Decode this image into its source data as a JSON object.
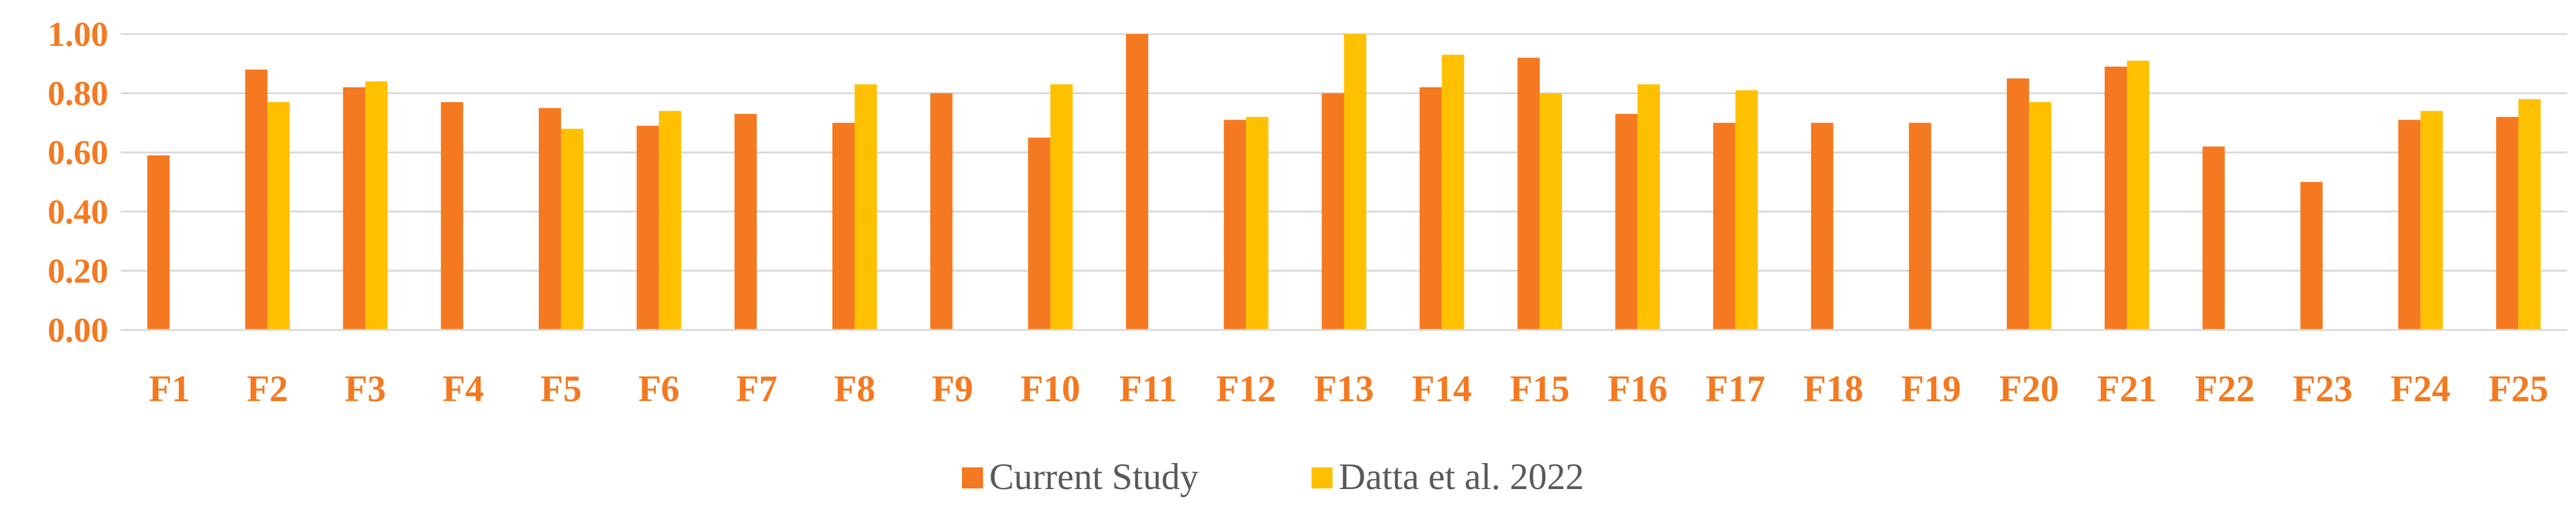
{
  "chart_data": {
    "type": "bar",
    "title": "",
    "xlabel": "",
    "ylabel": "",
    "ylim": [
      0,
      1
    ],
    "yticks": [
      "0.00",
      "0.20",
      "0.40",
      "0.60",
      "0.80",
      "1.00"
    ],
    "grid": true,
    "legend_position": "bottom",
    "tick_color": "#f47920",
    "categories": [
      "F1",
      "F2",
      "F3",
      "F4",
      "F5",
      "F6",
      "F7",
      "F8",
      "F9",
      "F10",
      "F11",
      "F12",
      "F13",
      "F14",
      "F15",
      "F16",
      "F17",
      "F18",
      "F19",
      "F20",
      "F21",
      "F22",
      "F23",
      "F24",
      "F25"
    ],
    "series": [
      {
        "name": "Current Study",
        "color": "#f47920",
        "values": [
          0.59,
          0.88,
          0.82,
          0.77,
          0.75,
          0.69,
          0.73,
          0.7,
          0.8,
          0.65,
          1.0,
          0.71,
          0.8,
          0.82,
          0.92,
          0.73,
          0.7,
          0.7,
          0.7,
          0.85,
          0.89,
          0.62,
          0.5,
          0.71,
          0.72
        ]
      },
      {
        "name": "Datta et al. 2022",
        "color": "#ffc000",
        "values": [
          null,
          0.77,
          0.84,
          null,
          0.68,
          0.74,
          null,
          0.83,
          null,
          0.83,
          null,
          0.72,
          1.0,
          0.93,
          0.8,
          0.83,
          0.81,
          null,
          null,
          0.77,
          0.91,
          null,
          null,
          0.74,
          0.78
        ]
      }
    ]
  }
}
